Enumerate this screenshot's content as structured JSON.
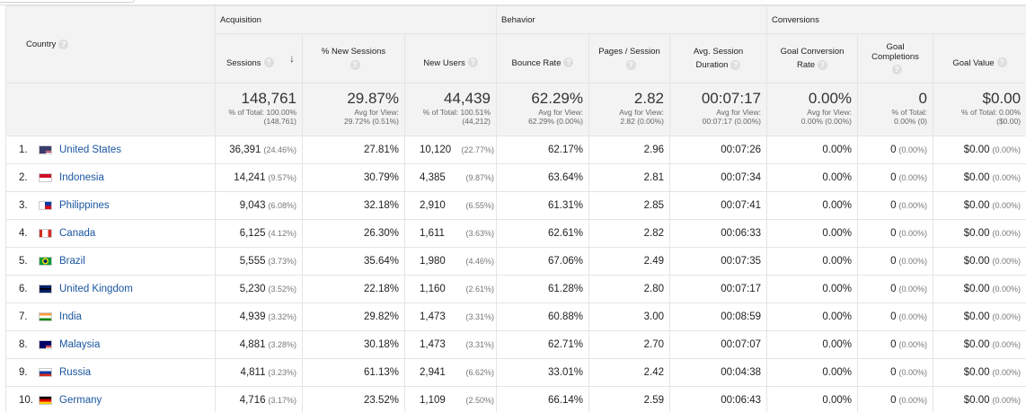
{
  "header": {
    "country_label": "Country",
    "groups": {
      "acquisition": "Acquisition",
      "behavior": "Behavior",
      "conversions": "Conversions"
    },
    "columns": {
      "sessions": "Sessions",
      "new_sessions": "% New Sessions",
      "new_users": "New Users",
      "bounce_rate": "Bounce Rate",
      "pages_session": "Pages / Session",
      "avg_duration_1": "Avg. Session",
      "avg_duration_2": "Duration",
      "goal_conv_1": "Goal Conversion",
      "goal_conv_2": "Rate",
      "goal_comp_1": "Goal",
      "goal_comp_2": "Completions",
      "goal_value": "Goal Value"
    },
    "help_glyph": "?",
    "sort_glyph": "↓"
  },
  "totals": {
    "sessions": {
      "big": "148,761",
      "l1": "% of Total: 100.00%",
      "l2": "(148,761)"
    },
    "new_sessions": {
      "big": "29.87%",
      "l1": "Avg for View:",
      "l2": "29.72% (0.51%)"
    },
    "new_users": {
      "big": "44,439",
      "l1": "% of Total: 100.51%",
      "l2": "(44,212)"
    },
    "bounce_rate": {
      "big": "62.29%",
      "l1": "Avg for View:",
      "l2": "62.29% (0.00%)"
    },
    "pages_session": {
      "big": "2.82",
      "l1": "Avg for View:",
      "l2": "2.82 (0.00%)"
    },
    "avg_duration": {
      "big": "00:07:17",
      "l1": "Avg for View:",
      "l2": "00:07:17 (0.00%)"
    },
    "goal_conv": {
      "big": "0.00%",
      "l1": "Avg for View:",
      "l2": "0.00% (0.00%)"
    },
    "goal_comp": {
      "big": "0",
      "l1": "% of Total:",
      "l2": "0.00% (0)"
    },
    "goal_value": {
      "big": "$0.00",
      "l1": "% of Total: 0.00%",
      "l2": "($0.00)"
    }
  },
  "rows": [
    {
      "idx": "1.",
      "country": "United States",
      "flag": "flag-us-icon",
      "sessions": "36,391",
      "sessions_pct": "(24.46%)",
      "new_sessions": "27.81%",
      "new_users": "10,120",
      "new_users_pct": "(22.77%)",
      "bounce": "62.17%",
      "pages": "2.96",
      "duration": "00:07:26",
      "conv": "0.00%",
      "comp": "0",
      "comp_pct": "(0.00%)",
      "value": "$0.00",
      "value_pct": "(0.00%)"
    },
    {
      "idx": "2.",
      "country": "Indonesia",
      "flag": "flag-id-icon",
      "sessions": "14,241",
      "sessions_pct": "(9.57%)",
      "new_sessions": "30.79%",
      "new_users": "4,385",
      "new_users_pct": "(9.87%)",
      "bounce": "63.64%",
      "pages": "2.81",
      "duration": "00:07:34",
      "conv": "0.00%",
      "comp": "0",
      "comp_pct": "(0.00%)",
      "value": "$0.00",
      "value_pct": "(0.00%)"
    },
    {
      "idx": "3.",
      "country": "Philippines",
      "flag": "flag-ph-icon",
      "sessions": "9,043",
      "sessions_pct": "(6.08%)",
      "new_sessions": "32.18%",
      "new_users": "2,910",
      "new_users_pct": "(6.55%)",
      "bounce": "61.31%",
      "pages": "2.85",
      "duration": "00:07:41",
      "conv": "0.00%",
      "comp": "0",
      "comp_pct": "(0.00%)",
      "value": "$0.00",
      "value_pct": "(0.00%)"
    },
    {
      "idx": "4.",
      "country": "Canada",
      "flag": "flag-ca-icon",
      "sessions": "6,125",
      "sessions_pct": "(4.12%)",
      "new_sessions": "26.30%",
      "new_users": "1,611",
      "new_users_pct": "(3.63%)",
      "bounce": "62.61%",
      "pages": "2.82",
      "duration": "00:06:33",
      "conv": "0.00%",
      "comp": "0",
      "comp_pct": "(0.00%)",
      "value": "$0.00",
      "value_pct": "(0.00%)"
    },
    {
      "idx": "5.",
      "country": "Brazil",
      "flag": "flag-br-icon",
      "sessions": "5,555",
      "sessions_pct": "(3.73%)",
      "new_sessions": "35.64%",
      "new_users": "1,980",
      "new_users_pct": "(4.46%)",
      "bounce": "67.06%",
      "pages": "2.49",
      "duration": "00:07:35",
      "conv": "0.00%",
      "comp": "0",
      "comp_pct": "(0.00%)",
      "value": "$0.00",
      "value_pct": "(0.00%)"
    },
    {
      "idx": "6.",
      "country": "United Kingdom",
      "flag": "flag-gb-icon",
      "sessions": "5,230",
      "sessions_pct": "(3.52%)",
      "new_sessions": "22.18%",
      "new_users": "1,160",
      "new_users_pct": "(2.61%)",
      "bounce": "61.28%",
      "pages": "2.80",
      "duration": "00:07:17",
      "conv": "0.00%",
      "comp": "0",
      "comp_pct": "(0.00%)",
      "value": "$0.00",
      "value_pct": "(0.00%)"
    },
    {
      "idx": "7.",
      "country": "India",
      "flag": "flag-in-icon",
      "sessions": "4,939",
      "sessions_pct": "(3.32%)",
      "new_sessions": "29.82%",
      "new_users": "1,473",
      "new_users_pct": "(3.31%)",
      "bounce": "60.88%",
      "pages": "3.00",
      "duration": "00:08:59",
      "conv": "0.00%",
      "comp": "0",
      "comp_pct": "(0.00%)",
      "value": "$0.00",
      "value_pct": "(0.00%)"
    },
    {
      "idx": "8.",
      "country": "Malaysia",
      "flag": "flag-my-icon",
      "sessions": "4,881",
      "sessions_pct": "(3.28%)",
      "new_sessions": "30.18%",
      "new_users": "1,473",
      "new_users_pct": "(3.31%)",
      "bounce": "62.71%",
      "pages": "2.70",
      "duration": "00:07:07",
      "conv": "0.00%",
      "comp": "0",
      "comp_pct": "(0.00%)",
      "value": "$0.00",
      "value_pct": "(0.00%)"
    },
    {
      "idx": "9.",
      "country": "Russia",
      "flag": "flag-ru-icon",
      "sessions": "4,811",
      "sessions_pct": "(3.23%)",
      "new_sessions": "61.13%",
      "new_users": "2,941",
      "new_users_pct": "(6.62%)",
      "bounce": "33.01%",
      "pages": "2.42",
      "duration": "00:04:38",
      "conv": "0.00%",
      "comp": "0",
      "comp_pct": "(0.00%)",
      "value": "$0.00",
      "value_pct": "(0.00%)"
    },
    {
      "idx": "10.",
      "country": "Germany",
      "flag": "flag-de-icon",
      "sessions": "4,716",
      "sessions_pct": "(3.17%)",
      "new_sessions": "23.52%",
      "new_users": "1,109",
      "new_users_pct": "(2.50%)",
      "bounce": "66.14%",
      "pages": "2.59",
      "duration": "00:06:43",
      "conv": "0.00%",
      "comp": "0",
      "comp_pct": "(0.00%)",
      "value": "$0.00",
      "value_pct": "(0.00%)"
    }
  ],
  "colors": {
    "link": "#1a56a0",
    "header_bg": "#f3f3f3",
    "border": "#e4e4e4"
  }
}
